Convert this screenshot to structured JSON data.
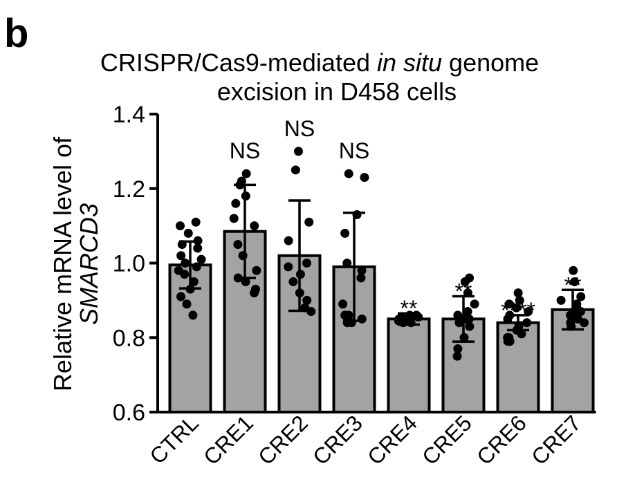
{
  "panel_label": "b",
  "chart_data": {
    "type": "bar",
    "title_parts": [
      {
        "text": "CRISPR/Cas9-mediated ",
        "italic": false
      },
      {
        "text": "in situ",
        "italic": true
      },
      {
        "text": " genome",
        "italic": false
      }
    ],
    "title_line2": "excision in D458 cells",
    "ylabel_line1": "Relative mRNA level of",
    "ylabel_line2": "SMARCD3",
    "ylim": [
      0.6,
      1.4
    ],
    "yticks": [
      0.6,
      0.8,
      1.0,
      1.2,
      1.4
    ],
    "ytick_labels": [
      "0.6",
      "0.8",
      "1.0",
      "1.2",
      "1.4"
    ],
    "categories": [
      "CTRL",
      "CRE1",
      "CRE2",
      "CRE3",
      "CRE4",
      "CRE5",
      "CRE6",
      "CRE7"
    ],
    "values": [
      0.995,
      1.085,
      1.02,
      0.99,
      0.85,
      0.85,
      0.84,
      0.875
    ],
    "error": [
      0.063,
      0.125,
      0.148,
      0.145,
      0.015,
      0.061,
      0.02,
      0.053
    ],
    "significance": [
      "",
      "NS",
      "NS",
      "NS",
      "**",
      "**",
      "****",
      "**"
    ],
    "label_colors": [
      "#000000",
      "#000000",
      "#000000",
      "#000000",
      "#1ea6dc",
      "#1ea6dc",
      "#1ea6dc",
      "#1ea6dc"
    ],
    "bar_color": "#a3a3a3",
    "point_color": "#000000",
    "points": [
      [
        1.11,
        1.1,
        1.08,
        1.06,
        1.05,
        1.04,
        1.02,
        1.01,
        1.0,
        0.99,
        0.98,
        0.97,
        0.95,
        0.93,
        0.91,
        0.89,
        0.86
      ],
      [
        1.24,
        1.22,
        1.21,
        1.18,
        1.16,
        1.12,
        1.1,
        1.05,
        1.02,
        0.98,
        0.96,
        0.95,
        0.93,
        0.92
      ],
      [
        1.3,
        1.25,
        1.11,
        1.06,
        1.0,
        0.99,
        0.97,
        0.95,
        0.92,
        0.9,
        0.88,
        0.87
      ],
      [
        1.24,
        1.23,
        1.13,
        1.08,
        1.0,
        0.98,
        0.96,
        0.89,
        0.86,
        0.86,
        0.85,
        0.84,
        0.84
      ],
      [
        0.86,
        0.86,
        0.855,
        0.85,
        0.85,
        0.85,
        0.845,
        0.845,
        0.84,
        0.84
      ],
      [
        0.96,
        0.95,
        0.92,
        0.89,
        0.87,
        0.86,
        0.85,
        0.85,
        0.84,
        0.83,
        0.8,
        0.77,
        0.75
      ],
      [
        0.92,
        0.9,
        0.89,
        0.88,
        0.87,
        0.86,
        0.85,
        0.84,
        0.83,
        0.82,
        0.81,
        0.8,
        0.8,
        0.79,
        0.79
      ],
      [
        0.98,
        0.95,
        0.91,
        0.9,
        0.89,
        0.88,
        0.87,
        0.87,
        0.86,
        0.85,
        0.84,
        0.84,
        0.83
      ]
    ]
  }
}
